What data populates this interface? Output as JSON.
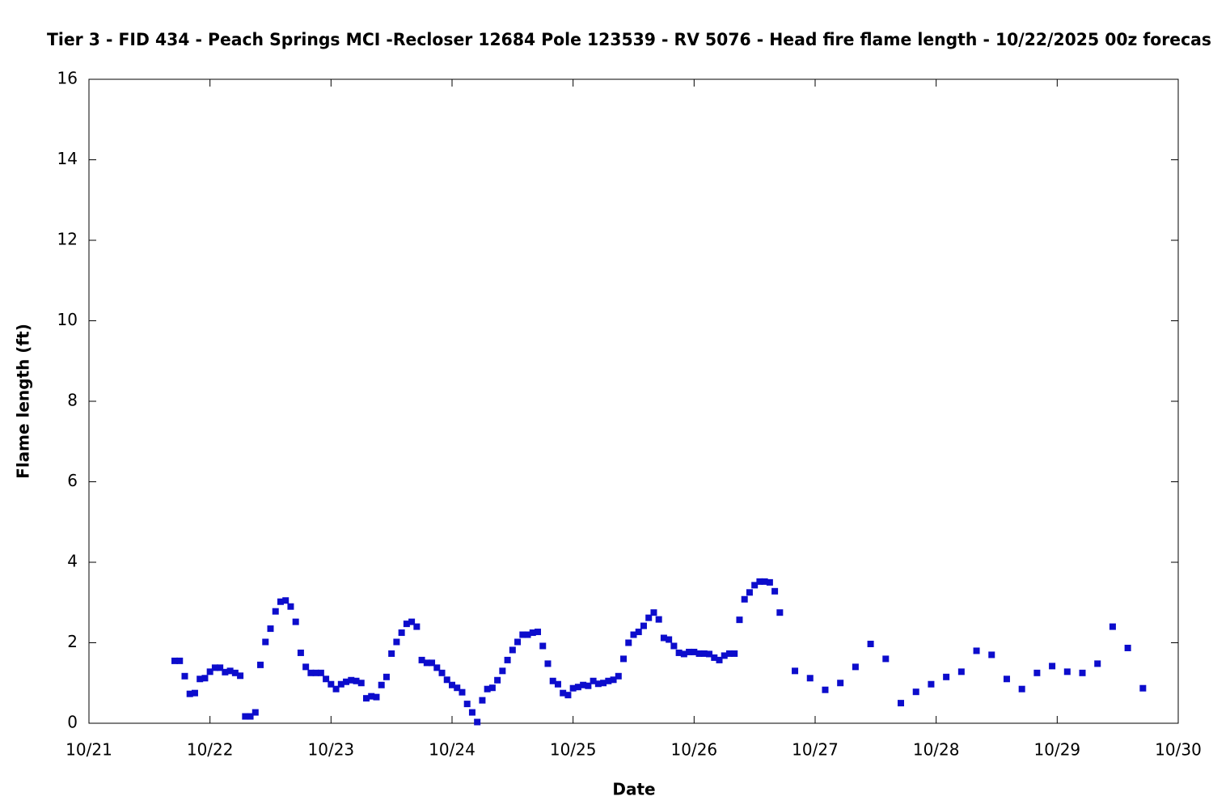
{
  "chart_data": {
    "type": "scatter",
    "title": "Tier 3 - FID 434 - Peach Springs MCI -Recloser 12684 Pole 123539 - RV 5076 - Head fire flame length - 10/22/2025 00z forecas",
    "x_label": "Date",
    "y_label": "Flame length (ft)",
    "color": "#0c0ccc",
    "grid": false,
    "xlim": [
      0,
      216
    ],
    "xticks": [
      {
        "value": 0,
        "label": "10/21"
      },
      {
        "value": 24,
        "label": "10/22"
      },
      {
        "value": 48,
        "label": "10/23"
      },
      {
        "value": 72,
        "label": "10/24"
      },
      {
        "value": 96,
        "label": "10/25"
      },
      {
        "value": 120,
        "label": "10/26"
      },
      {
        "value": 144,
        "label": "10/27"
      },
      {
        "value": 168,
        "label": "10/28"
      },
      {
        "value": 192,
        "label": "10/29"
      },
      {
        "value": 216,
        "label": "10/30"
      }
    ],
    "ylim": [
      0,
      16
    ],
    "yticks": [
      0,
      2,
      4,
      6,
      8,
      10,
      12,
      14,
      16
    ],
    "x": [
      17,
      18,
      19,
      20,
      21,
      22,
      23,
      24,
      25,
      26,
      27,
      28,
      29,
      30,
      31,
      32,
      33,
      34,
      35,
      36,
      37,
      38,
      39,
      40,
      41,
      42,
      43,
      44,
      45,
      46,
      47,
      48,
      49,
      50,
      51,
      52,
      53,
      54,
      55,
      56,
      57,
      58,
      59,
      60,
      61,
      62,
      63,
      64,
      65,
      66,
      67,
      68,
      69,
      70,
      71,
      72,
      73,
      74,
      75,
      76,
      77,
      78,
      79,
      80,
      81,
      82,
      83,
      84,
      85,
      86,
      87,
      88,
      89,
      90,
      91,
      92,
      93,
      94,
      95,
      96,
      97,
      98,
      99,
      100,
      101,
      102,
      103,
      104,
      105,
      106,
      107,
      108,
      109,
      110,
      111,
      112,
      113,
      114,
      115,
      116,
      117,
      118,
      119,
      120,
      121,
      122,
      123,
      124,
      125,
      126,
      127,
      128,
      129,
      130,
      131,
      132,
      133,
      134,
      135,
      136,
      137,
      140,
      143,
      146,
      149,
      152,
      155,
      158,
      161,
      164,
      167,
      170,
      173,
      176,
      179,
      182,
      185,
      188,
      191,
      194,
      197,
      200,
      203,
      206,
      209
    ],
    "values": [
      1.55,
      1.55,
      1.17,
      0.73,
      0.75,
      1.1,
      1.12,
      1.28,
      1.38,
      1.38,
      1.27,
      1.3,
      1.25,
      1.18,
      0.17,
      0.17,
      0.27,
      1.45,
      2.02,
      2.35,
      2.78,
      3.02,
      3.05,
      2.9,
      2.52,
      1.75,
      1.4,
      1.25,
      1.25,
      1.25,
      1.1,
      0.97,
      0.85,
      0.97,
      1.03,
      1.07,
      1.05,
      1.0,
      0.62,
      0.67,
      0.65,
      0.95,
      1.15,
      1.73,
      2.02,
      2.25,
      2.47,
      2.52,
      2.4,
      1.57,
      1.5,
      1.5,
      1.38,
      1.25,
      1.08,
      0.95,
      0.88,
      0.77,
      0.48,
      0.27,
      0.03,
      0.57,
      0.85,
      0.88,
      1.07,
      1.3,
      1.57,
      1.82,
      2.02,
      2.2,
      2.2,
      2.25,
      2.27,
      1.92,
      1.48,
      1.05,
      0.97,
      0.75,
      0.7,
      0.87,
      0.9,
      0.95,
      0.93,
      1.05,
      0.98,
      1.0,
      1.05,
      1.08,
      1.17,
      1.6,
      2.0,
      2.2,
      2.27,
      2.42,
      2.62,
      2.75,
      2.58,
      2.12,
      2.08,
      1.92,
      1.75,
      1.72,
      1.77,
      1.77,
      1.73,
      1.73,
      1.72,
      1.63,
      1.57,
      1.68,
      1.73,
      1.73,
      2.57,
      3.08,
      3.25,
      3.43,
      3.52,
      3.52,
      3.5,
      3.28,
      2.75,
      1.3,
      1.12,
      0.83,
      1.0,
      1.4,
      1.97,
      1.6,
      0.5,
      0.78,
      0.97,
      1.15,
      1.28,
      1.8,
      1.7,
      1.1,
      0.85,
      1.25,
      1.42,
      1.28,
      1.25,
      1.48,
      2.4,
      1.87,
      0.87
    ]
  }
}
